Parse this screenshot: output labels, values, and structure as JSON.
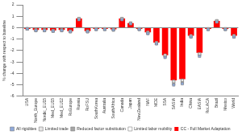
{
  "chart_data": {
    "type": "bar",
    "y_label": "% change with respect to baseline",
    "categories": [
      "USA",
      "North_Europe",
      "Nordic_EU15",
      "Med_EU15",
      "Med_EU12",
      "RoEurope",
      "Russia",
      "RoFSU",
      "SouthKorea",
      "Australia",
      "SouthAfrica",
      "Canada",
      "Japan",
      "NewZealand",
      "NAF",
      "MDE",
      "SSA",
      "SASIA",
      "India",
      "China",
      "EASIA",
      "RoLACA",
      "Brazil",
      "Mexico",
      "World"
    ],
    "series": [
      {
        "name": "All rigidities",
        "type": "scatter",
        "marker": "square",
        "color": "#8ea9db",
        "values": [
          -0.1,
          -0.25,
          -0.25,
          -0.3,
          -0.25,
          -0.35,
          0.7,
          -0.35,
          -0.15,
          -0.15,
          -0.2,
          0.7,
          0.35,
          -0.15,
          -0.5,
          -1.4,
          -2.6,
          -5.0,
          -4.9,
          -0.8,
          -2.5,
          -0.15,
          0.5,
          -0.15,
          -0.8
        ]
      },
      {
        "name": "Limited trade",
        "type": "scatter",
        "marker": "square",
        "color": "#e7e6e6",
        "values": [
          -0.1,
          -0.2,
          -0.2,
          -0.25,
          -0.2,
          -0.3,
          0.8,
          -0.3,
          -0.1,
          -0.1,
          -0.15,
          0.8,
          0.4,
          -0.1,
          -0.45,
          -1.3,
          -2.4,
          -4.7,
          -4.6,
          -0.7,
          -2.3,
          -0.1,
          0.6,
          -0.1,
          -0.7
        ]
      },
      {
        "name": "Reduced factor substitution",
        "type": "scatter",
        "marker": "square",
        "color": "#a6a6a6",
        "values": [
          -0.1,
          -0.25,
          -0.25,
          -0.3,
          -0.25,
          -0.35,
          0.75,
          -0.35,
          -0.15,
          -0.15,
          -0.2,
          0.75,
          0.35,
          -0.15,
          -0.5,
          -1.4,
          -2.5,
          -4.9,
          -4.8,
          -0.8,
          -2.4,
          -0.15,
          0.55,
          -0.15,
          -0.8
        ]
      },
      {
        "name": "Limited labor mobility",
        "type": "scatter",
        "marker": "square",
        "color": "#ffffff",
        "values": [
          -0.1,
          -0.2,
          -0.2,
          -0.25,
          -0.2,
          -0.3,
          0.8,
          -0.3,
          -0.1,
          -0.1,
          -0.15,
          0.8,
          0.4,
          -0.1,
          -0.4,
          -1.35,
          -2.45,
          -4.7,
          -4.6,
          -0.75,
          -2.3,
          -0.1,
          0.6,
          -0.1,
          -0.7
        ]
      },
      {
        "name": "CC - Full Market Adaptation",
        "type": "bar",
        "color": "#ff0000",
        "values": [
          -0.1,
          -0.2,
          -0.2,
          -0.25,
          -0.2,
          -0.3,
          0.8,
          -0.3,
          -0.1,
          -0.1,
          -0.15,
          0.8,
          0.4,
          -0.1,
          -0.4,
          -1.3,
          -2.4,
          -4.6,
          -4.5,
          -0.7,
          -2.2,
          -0.1,
          0.6,
          -0.1,
          -0.7
        ]
      }
    ],
    "ylim": [
      -6,
      2
    ],
    "yticks": [
      -6,
      -5,
      -4,
      -3,
      -2,
      -1,
      0,
      1,
      2
    ],
    "grid": false,
    "legend": "bottom"
  }
}
